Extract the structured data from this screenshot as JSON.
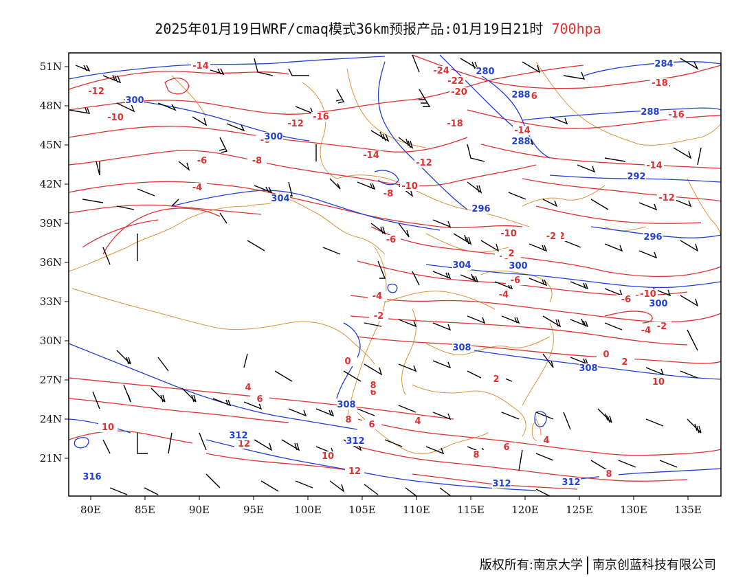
{
  "title": {
    "main": "2025年01月19日WRF/cmaq模式36km预报产品:01月19日21时",
    "level": "700hpa"
  },
  "footer": {
    "copyright": "版权所有:南京大学",
    "company": "南京创蓝科技有限公司"
  },
  "axes": {
    "x_ticks": [
      "80E",
      "85E",
      "90E",
      "95E",
      "100E",
      "105E",
      "110E",
      "115E",
      "120E",
      "125E",
      "130E",
      "135E"
    ],
    "y_ticks": [
      "51N",
      "48N",
      "45N",
      "42N",
      "39N",
      "36N",
      "33N",
      "30N",
      "27N",
      "24N",
      "21N"
    ]
  },
  "colors": {
    "temperature": "#e03030",
    "height": "#1f3fd8",
    "boundary": "#e0913a",
    "wind": "#000000"
  },
  "temperature_labels": [
    "-14",
    "-12",
    "-10",
    "-24",
    "-22",
    "-20",
    "-18",
    "-16",
    "-16",
    "-12",
    "-16",
    "-18",
    "-14",
    "-8",
    "-6",
    "-4",
    "-14",
    "-12",
    "-10",
    "-8",
    "-6",
    "-12",
    "-14",
    "-12",
    "-10",
    "-8",
    "-6",
    "-4",
    "-4",
    "-2",
    "-10",
    "-6",
    "-4",
    "-6",
    "0",
    "-2",
    "2",
    "0",
    "2",
    "4",
    "4",
    "6",
    "6",
    "8",
    "6",
    "8",
    "4",
    "10",
    "8",
    "12",
    "10",
    "12",
    "10",
    "6",
    "8",
    "2",
    "-2"
  ],
  "height_labels": [
    "300",
    "300",
    "284",
    "280",
    "288",
    "288",
    "288",
    "292",
    "296",
    "296",
    "304",
    "304",
    "300",
    "300",
    "308",
    "308",
    "308",
    "312",
    "312",
    "312",
    "312",
    "316"
  ]
}
